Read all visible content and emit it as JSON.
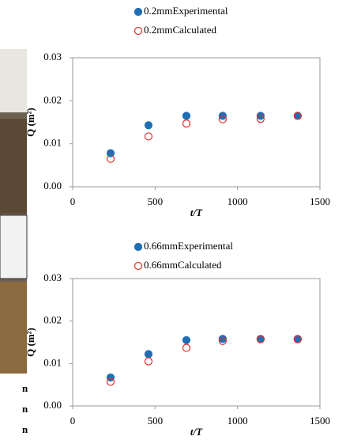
{
  "chart_data": [
    {
      "type": "scatter",
      "x_label": "t/T",
      "y_label": "Q (m²)",
      "x": [
        230,
        460,
        690,
        910,
        1140,
        1365
      ],
      "series": [
        {
          "name": "0.2mmExperimental",
          "color": "#1f6fb4",
          "marker": "filled",
          "values": [
            0.0078,
            0.0143,
            0.0165,
            0.0165,
            0.0165,
            0.0165
          ]
        },
        {
          "name": "0.2mmCalculated",
          "color": "#e0302a",
          "marker": "hollow",
          "values": [
            0.0065,
            0.0117,
            0.0147,
            0.0157,
            0.0158,
            0.0165
          ]
        }
      ],
      "xlim": [
        0,
        1500
      ],
      "xticks": [
        0,
        500,
        1000,
        1500
      ],
      "ylim": [
        0,
        0.03
      ],
      "yticks": [
        {
          "value": 0,
          "label": "0.00"
        },
        {
          "value": 0.01,
          "label": "0.01"
        },
        {
          "value": 0.02,
          "label": "0.02"
        },
        {
          "value": 0.03,
          "label": "0.03"
        }
      ]
    },
    {
      "type": "scatter",
      "x_label": "t/T",
      "y_label": "Q (m²)",
      "x": [
        230,
        460,
        690,
        910,
        1140,
        1365
      ],
      "series": [
        {
          "name": "0.66mmExperimental",
          "color": "#1f6fb4",
          "marker": "filled",
          "values": [
            0.0067,
            0.0122,
            0.0155,
            0.0158,
            0.0158,
            0.0158
          ]
        },
        {
          "name": "0.66mmCalculated",
          "color": "#e0302a",
          "marker": "hollow",
          "values": [
            0.0057,
            0.0105,
            0.0137,
            0.0153,
            0.0157,
            0.0157
          ]
        }
      ],
      "xlim": [
        0,
        1500
      ],
      "xticks": [
        0,
        500,
        1000,
        1500
      ],
      "ylim": [
        0,
        0.03
      ],
      "yticks": [
        {
          "value": 0,
          "label": "0.00"
        },
        {
          "value": 0.01,
          "label": "0.01"
        },
        {
          "value": 0.02,
          "label": "0.02"
        },
        {
          "value": 0.03,
          "label": "0.03"
        }
      ]
    }
  ],
  "left_fragments": [
    "n",
    "n",
    "n"
  ]
}
